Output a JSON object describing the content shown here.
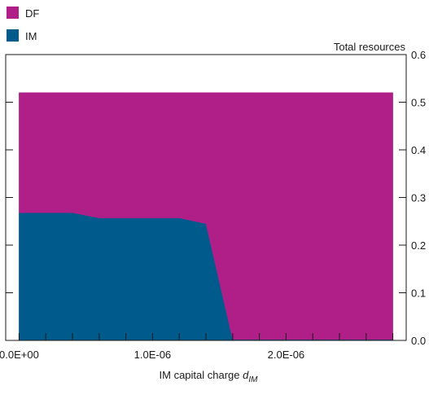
{
  "chart_data": {
    "type": "area",
    "stacked": true,
    "xlabel_main": "IM capital charge ",
    "xlabel_var": "d",
    "xlabel_sub": "IM",
    "ylabel": "Total resources",
    "xlim": [
      -1e-07,
      2.9e-06
    ],
    "ylim": [
      0,
      0.6
    ],
    "x_ticks": [
      0,
      2e-07,
      4e-07,
      6e-07,
      8e-07,
      1e-06,
      1.2e-06,
      1.4e-06,
      1.6e-06,
      1.8e-06,
      2e-06,
      2.2e-06,
      2.4e-06,
      2.6e-06,
      2.8e-06
    ],
    "x_tick_labels": [
      {
        "value": 0,
        "label": "0.0E+00"
      },
      {
        "value": 1e-06,
        "label": "1.0E-06"
      },
      {
        "value": 2e-06,
        "label": "2.0E-06"
      }
    ],
    "y_ticks": [
      0,
      0.1,
      0.2,
      0.3,
      0.4,
      0.5,
      0.6
    ],
    "y_tick_labels": [
      "0.0",
      "0.1",
      "0.2",
      "0.3",
      "0.4",
      "0.5",
      "0.6"
    ],
    "x": [
      0,
      2e-07,
      4e-07,
      6e-07,
      8e-07,
      1e-06,
      1.2e-06,
      1.4e-06,
      1.6e-06,
      1.8e-06,
      2e-06,
      2.2e-06,
      2.4e-06,
      2.6e-06,
      2.8e-06
    ],
    "series": [
      {
        "name": "IM",
        "color": "#005a8c",
        "values": [
          0.268,
          0.268,
          0.268,
          0.257,
          0.257,
          0.257,
          0.257,
          0.245,
          0.002,
          0.002,
          0.002,
          0.002,
          0.002,
          0.002,
          0.002
        ]
      },
      {
        "name": "DF",
        "color": "#b01e87",
        "values": [
          0.252,
          0.252,
          0.252,
          0.263,
          0.263,
          0.263,
          0.263,
          0.275,
          0.518,
          0.518,
          0.518,
          0.518,
          0.518,
          0.518,
          0.518
        ]
      }
    ],
    "legend": [
      {
        "label": "DF",
        "color": "#b01e87"
      },
      {
        "label": "IM",
        "color": "#005a8c"
      }
    ],
    "legend_position": "top-left",
    "grid": false
  }
}
